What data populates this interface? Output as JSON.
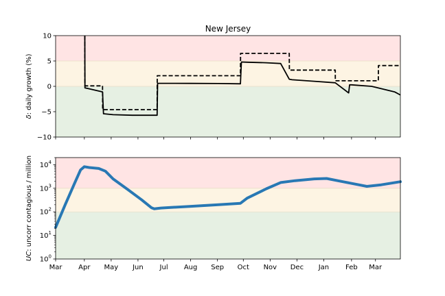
{
  "chart_data": [
    {
      "type": "line",
      "title": "New Jersey",
      "ylabel_symbol": "δ",
      "ylabel_text": ": daily growth (%)",
      "ylim": [
        -10,
        10
      ],
      "yticks": [
        {
          "value": 10,
          "label": "10"
        },
        {
          "value": 5,
          "label": "5"
        },
        {
          "value": 0,
          "label": "0"
        },
        {
          "value": -5,
          "label": "−5"
        },
        {
          "value": -10,
          "label": "−10"
        }
      ],
      "bands": [
        {
          "from": 5,
          "to": 10,
          "color": "#ffe4e4"
        },
        {
          "from": 0,
          "to": 5,
          "color": "#fdf4e3"
        },
        {
          "from": -10,
          "to": 0,
          "color": "#e6f0e3"
        }
      ],
      "series": [
        {
          "style": "solid",
          "color": "#000000",
          "x": [
            30.5,
            30.6,
            49,
            50,
            60,
            80,
            106,
            106.5,
            110,
            140,
            170,
            193,
            194,
            200,
            220,
            235,
            244,
            247,
            270,
            292,
            306,
            307,
            309,
            330,
            354,
            356,
            360
          ],
          "y": [
            10,
            -0.3,
            -1.1,
            -5.4,
            -5.6,
            -5.7,
            -5.7,
            0.6,
            0.6,
            0.58,
            0.55,
            0.5,
            4.8,
            4.75,
            4.65,
            4.5,
            1.4,
            1.3,
            1.0,
            0.7,
            -1.3,
            0.3,
            0.3,
            0,
            -1.1,
            -1.3,
            -1.7
          ]
        },
        {
          "style": "dashed",
          "color": "#000000",
          "x": [
            30.5,
            30.6,
            49,
            49.1,
            106,
            106.1,
            193,
            193.1,
            244,
            244.1,
            292,
            292.1,
            337,
            337.1,
            360
          ],
          "y": [
            10,
            0.1,
            0.1,
            -4.6,
            -4.6,
            2.1,
            2.1,
            6.5,
            6.5,
            3.2,
            3.2,
            1.1,
            1.1,
            4.1,
            4.1
          ]
        }
      ]
    },
    {
      "type": "line",
      "ylabel_symbol": "UC",
      "ylabel_text": ": uncorr contagious / million",
      "scale": "log",
      "ylim": [
        1,
        20000
      ],
      "yticks": [
        {
          "value": 1,
          "base": "10",
          "exp": "0"
        },
        {
          "value": 10,
          "base": "10",
          "exp": "1"
        },
        {
          "value": 100,
          "base": "10",
          "exp": "2"
        },
        {
          "value": 1000,
          "base": "10",
          "exp": "3"
        },
        {
          "value": 10000,
          "base": "10",
          "exp": "4"
        }
      ],
      "bands": [
        {
          "from": 1000,
          "to": 20000,
          "color": "#ffe4e4"
        },
        {
          "from": 100,
          "to": 1000,
          "color": "#fdf4e3"
        },
        {
          "from": 1,
          "to": 100,
          "color": "#e6f0e3"
        }
      ],
      "xlim": [
        0,
        360
      ],
      "xticks": [
        {
          "value": 0,
          "label": "Mar"
        },
        {
          "value": 30,
          "label": "Apr"
        },
        {
          "value": 58,
          "label": "May"
        },
        {
          "value": 86,
          "label": "Jun"
        },
        {
          "value": 113,
          "label": "Jul"
        },
        {
          "value": 141,
          "label": "Aug"
        },
        {
          "value": 169,
          "label": "Sep"
        },
        {
          "value": 196,
          "label": "Oct"
        },
        {
          "value": 224,
          "label": "Nov"
        },
        {
          "value": 252,
          "label": "Dec"
        },
        {
          "value": 280,
          "label": "Jan"
        },
        {
          "value": 309,
          "label": "Feb"
        },
        {
          "value": 334,
          "label": "Mar"
        }
      ],
      "series": [
        {
          "style": "solid",
          "color": "#2878b4",
          "x": [
            0,
            10,
            20,
            26,
            30,
            35,
            45,
            52,
            60,
            75,
            90,
            100,
            103,
            110,
            140,
            170,
            193,
            200,
            220,
            235,
            250,
            270,
            283,
            300,
            325,
            340,
            360
          ],
          "y": [
            22,
            200,
            1700,
            6000,
            8200,
            7600,
            6900,
            5300,
            2500,
            900,
            320,
            150,
            135,
            145,
            170,
            200,
            230,
            380,
            950,
            1750,
            2100,
            2500,
            2600,
            1900,
            1200,
            1400,
            1900
          ]
        }
      ]
    }
  ]
}
